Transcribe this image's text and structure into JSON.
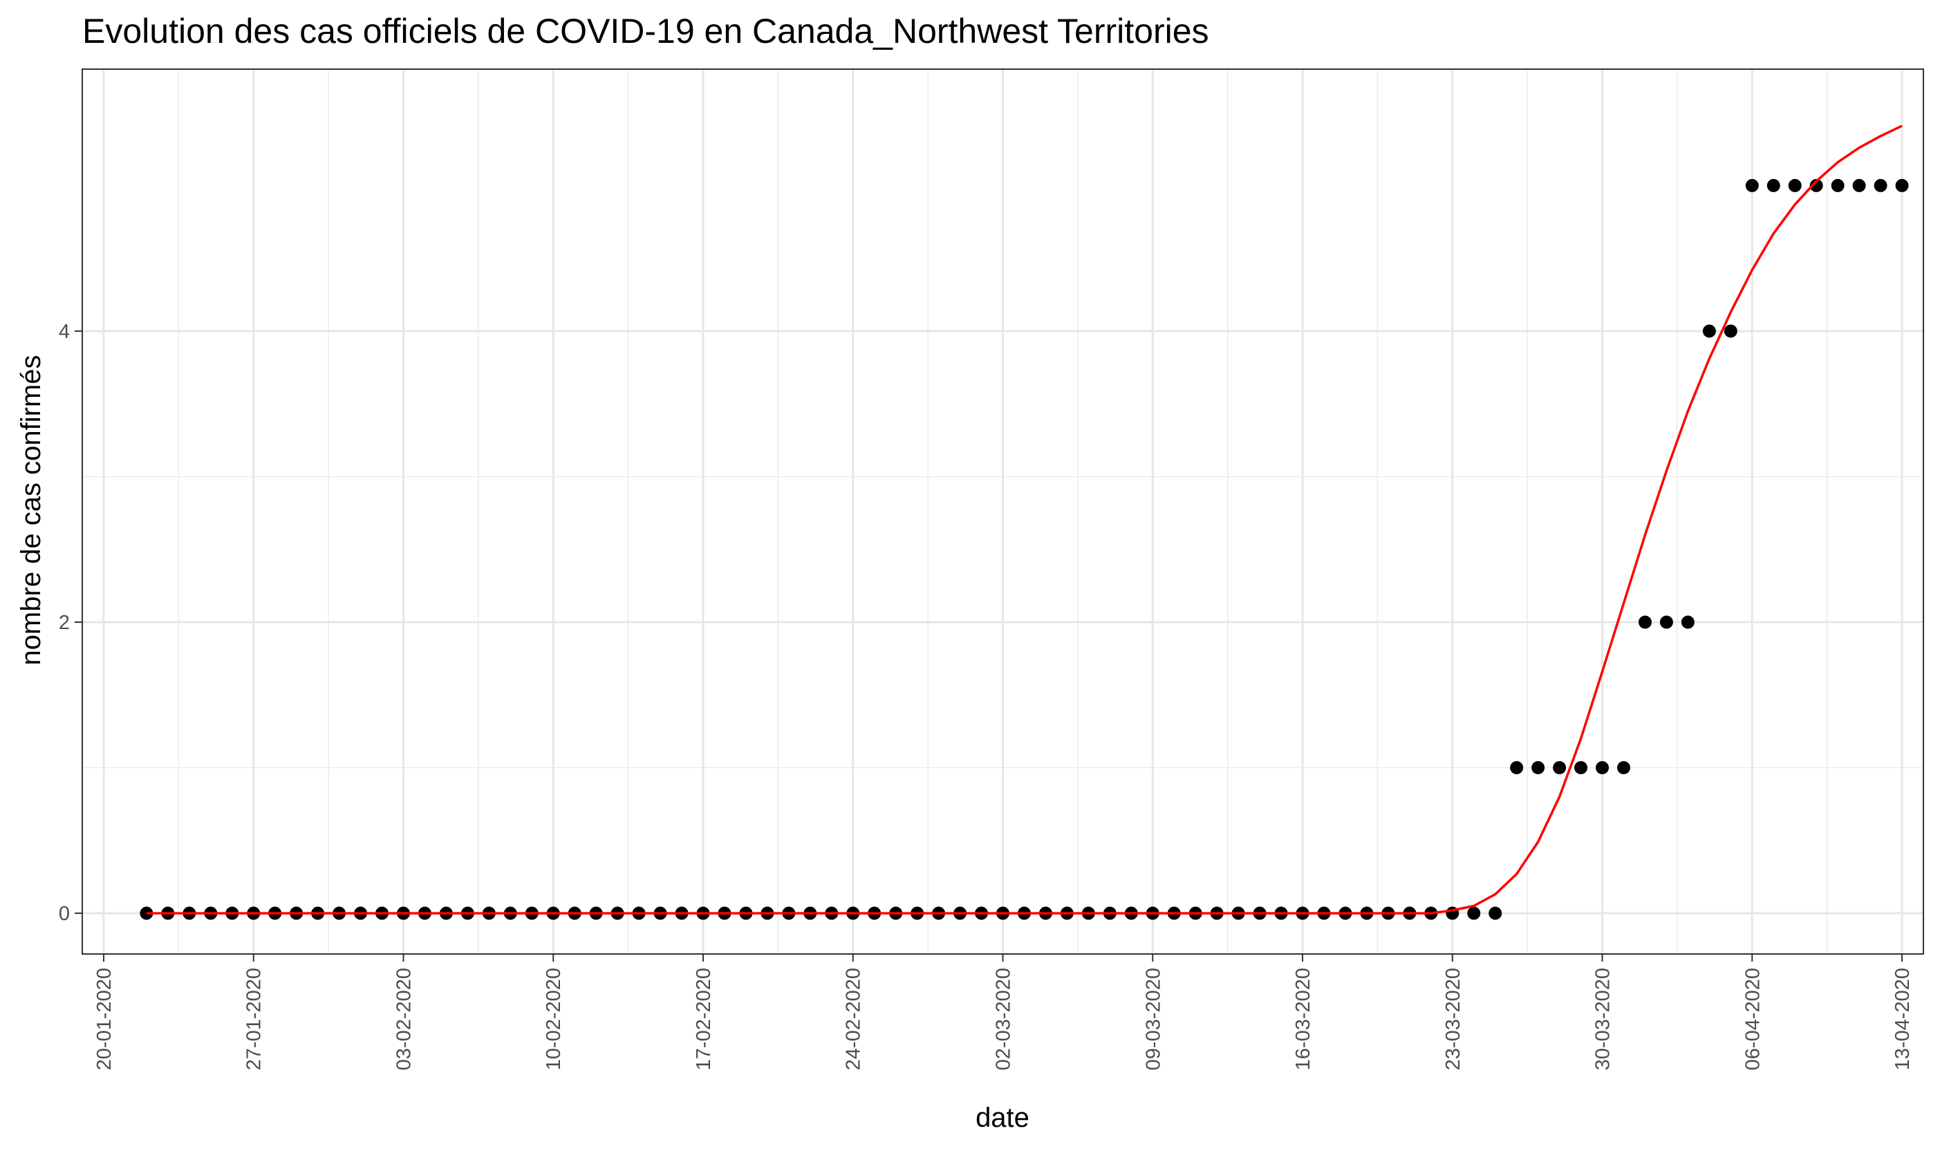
{
  "chart_data": {
    "type": "scatter",
    "title": "Evolution des cas officiels de COVID-19 en Canada_Northwest Territories",
    "xlabel": "date",
    "ylabel": "nombre de cas confirmés",
    "x_ticks": [
      "20-01-2020",
      "27-01-2020",
      "03-02-2020",
      "10-02-2020",
      "17-02-2020",
      "24-02-2020",
      "02-03-2020",
      "09-03-2020",
      "16-03-2020",
      "23-03-2020",
      "30-03-2020",
      "06-04-2020",
      "13-04-2020"
    ],
    "y_ticks": [
      "0",
      "2",
      "4"
    ],
    "xlim": [
      "2020-01-19",
      "2020-04-14"
    ],
    "ylim": [
      -0.28,
      5.8
    ],
    "grid": true,
    "series": [
      {
        "type": "points",
        "color": "#000000",
        "x_start": "2020-01-22",
        "x_end": "2020-04-13",
        "step_days": 1,
        "y": [
          0,
          0,
          0,
          0,
          0,
          0,
          0,
          0,
          0,
          0,
          0,
          0,
          0,
          0,
          0,
          0,
          0,
          0,
          0,
          0,
          0,
          0,
          0,
          0,
          0,
          0,
          0,
          0,
          0,
          0,
          0,
          0,
          0,
          0,
          0,
          0,
          0,
          0,
          0,
          0,
          0,
          0,
          0,
          0,
          0,
          0,
          0,
          0,
          0,
          0,
          0,
          0,
          0,
          0,
          0,
          0,
          0,
          0,
          0,
          0,
          0,
          0,
          0,
          0,
          1,
          1,
          1,
          1,
          1,
          1,
          2,
          2,
          2,
          4,
          4,
          5,
          5,
          5,
          5,
          5,
          5,
          5,
          5
        ]
      },
      {
        "type": "line",
        "color": "#ff0000",
        "x_start": "2020-01-22",
        "x_end": "2020-04-13",
        "step_days": 1,
        "y": [
          0,
          0,
          0,
          0,
          0,
          0,
          0,
          0,
          0,
          0,
          0,
          0,
          0,
          0,
          0,
          0,
          0,
          0,
          0,
          0,
          0,
          0,
          0,
          0,
          0,
          0,
          0,
          0,
          0,
          0,
          0,
          0,
          0,
          0,
          0,
          0,
          0,
          0,
          0,
          0,
          0,
          0,
          0,
          0,
          0,
          0,
          0,
          0,
          0,
          0,
          0,
          0,
          0,
          0,
          0,
          0,
          0,
          0,
          0,
          0,
          0,
          0.02,
          0.05,
          0.13,
          0.27,
          0.49,
          0.8,
          1.2,
          1.66,
          2.13,
          2.6,
          3.04,
          3.45,
          3.81,
          4.13,
          4.42,
          4.67,
          4.87,
          5.03,
          5.16,
          5.26,
          5.34,
          5.41
        ]
      }
    ]
  }
}
